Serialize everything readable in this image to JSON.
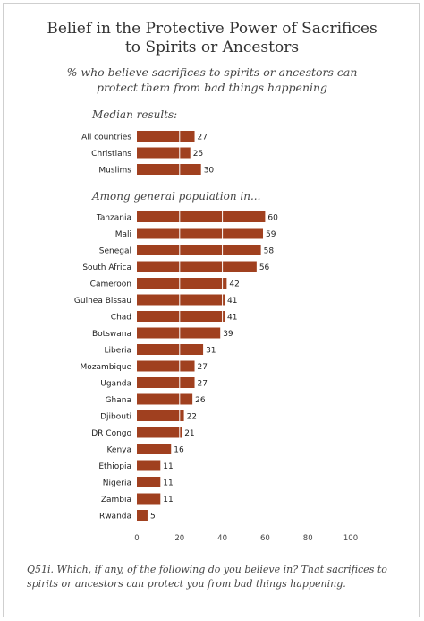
{
  "title_line1": "Belief in the Protective Power of Sacrifices",
  "title_line2": "to Spirits or Ancestors",
  "subtitle_line1": "% who believe sacrifices to spirits or ancestors can",
  "subtitle_line2": "protect them from bad things happening",
  "section_median": "Median results:",
  "section_general": "Among general population in...",
  "footnote_line1": "Q51i. Which, if any, of the following do you believe in? That sacrifices to",
  "footnote_line2": "spirits or ancestors can protect you from bad things happening.",
  "colors": {
    "bar": "#a0401f",
    "grid": "#ffffff"
  },
  "chart_data": {
    "type": "bar",
    "orientation": "horizontal",
    "xlim": [
      0,
      100
    ],
    "xticks": [
      0,
      20,
      40,
      60,
      80,
      100
    ],
    "grid": true,
    "groups": [
      {
        "name": "Median results:",
        "categories": [
          "All countries",
          "Christians",
          "Muslims"
        ],
        "values": [
          27,
          25,
          30
        ]
      },
      {
        "name": "Among general population in...",
        "categories": [
          "Tanzania",
          "Mali",
          "Senegal",
          "South Africa",
          "Cameroon",
          "Guinea Bissau",
          "Chad",
          "Botswana",
          "Liberia",
          "Mozambique",
          "Uganda",
          "Ghana",
          "Djibouti",
          "DR Congo",
          "Kenya",
          "Ethiopia",
          "Nigeria",
          "Zambia",
          "Rwanda"
        ],
        "values": [
          60,
          59,
          58,
          56,
          42,
          41,
          41,
          39,
          31,
          27,
          27,
          26,
          22,
          21,
          16,
          11,
          11,
          11,
          5
        ]
      }
    ]
  }
}
